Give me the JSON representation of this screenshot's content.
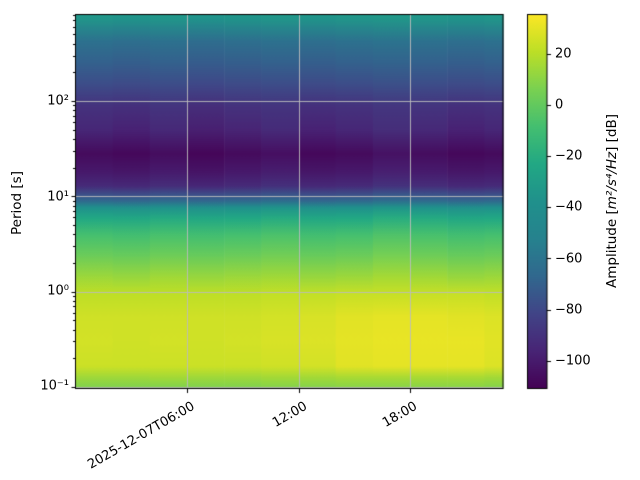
{
  "figure": {
    "background": "#ffffff",
    "grid_color": "#bbbbbb",
    "spine_color": "#000000",
    "y_axis": {
      "label": "Period [s]",
      "scale": "log",
      "range": [
        0.095,
        818
      ],
      "ticks": [
        {
          "value": 100,
          "label": "10²"
        },
        {
          "value": 10,
          "label": "10¹"
        },
        {
          "value": 1,
          "label": "10⁰"
        },
        {
          "value": 0.1,
          "label": "10⁻¹"
        }
      ]
    },
    "x_axis": {
      "date": "2025-12-07",
      "range_hours": [
        0,
        23
      ],
      "ticks": [
        {
          "hour": 6,
          "label": "2025-12-07T06:00"
        },
        {
          "hour": 12,
          "label": "12:00"
        },
        {
          "hour": 18,
          "label": "18:00"
        }
      ]
    },
    "colorbar": {
      "label_prefix": "Amplitude [",
      "label_math": "m²/s⁴/Hz",
      "label_suffix": "] [dB]",
      "vmin": -111,
      "vmax": 35.5,
      "colormap": "viridis",
      "ticks": [
        {
          "value": 20,
          "label": "20"
        },
        {
          "value": 0,
          "label": "0"
        },
        {
          "value": -20,
          "label": "−20"
        },
        {
          "value": -40,
          "label": "−40"
        },
        {
          "value": -60,
          "label": "−60"
        },
        {
          "value": -80,
          "label": "−80"
        },
        {
          "value": -100,
          "label": "−100"
        }
      ]
    }
  },
  "chart_data": {
    "type": "heatmap",
    "title": "",
    "x_unit": "hour of 2025-12-07",
    "y_unit": "period [s], log scale",
    "value_unit": "amplitude [dB]",
    "colormap": "viridis",
    "col_edges_hours": [
      0,
      2,
      4,
      6,
      8,
      10,
      12,
      14,
      16,
      18,
      20,
      22,
      23
    ],
    "rows": [
      {
        "period": 750,
        "db": [
          -34,
          -35,
          -34,
          -36,
          -35,
          -34,
          -35,
          -34,
          -33,
          -34,
          -35,
          -34
        ]
      },
      {
        "period": 420,
        "db": [
          -62,
          -63,
          -62,
          -64,
          -63,
          -62,
          -63,
          -62,
          -61,
          -62,
          -63,
          -62
        ]
      },
      {
        "period": 250,
        "db": [
          -70,
          -71,
          -70,
          -72,
          -71,
          -70,
          -71,
          -70,
          -69,
          -70,
          -71,
          -70
        ]
      },
      {
        "period": 150,
        "db": [
          -78,
          -79,
          -78,
          -80,
          -79,
          -78,
          -79,
          -78,
          -77,
          -78,
          -79,
          -78
        ]
      },
      {
        "period": 88,
        "db": [
          -90,
          -91,
          -89,
          -92,
          -90,
          -89,
          -91,
          -90,
          -88,
          -89,
          -91,
          -90
        ]
      },
      {
        "period": 50,
        "db": [
          -95,
          -97,
          -94,
          -98,
          -96,
          -93,
          -97,
          -95,
          -92,
          -94,
          -97,
          -95
        ]
      },
      {
        "period": 28,
        "db": [
          -107,
          -108,
          -106,
          -109,
          -107,
          -105,
          -108,
          -107,
          -104,
          -106,
          -108,
          -107
        ]
      },
      {
        "period": 18,
        "db": [
          -101,
          -102,
          -100,
          -103,
          -101,
          -99,
          -102,
          -101,
          -98,
          -100,
          -102,
          -101
        ]
      },
      {
        "period": 12.8,
        "db": [
          -93,
          -94,
          -92,
          -95,
          -93,
          -91,
          -94,
          -93,
          -90,
          -92,
          -94,
          -93
        ]
      },
      {
        "period": 10.4,
        "db": [
          -77,
          -78,
          -76,
          -78,
          -77,
          -75,
          -78,
          -77,
          -74,
          -76,
          -78,
          -77
        ]
      },
      {
        "period": 9.0,
        "db": [
          -67,
          -68,
          -66,
          -68,
          -67,
          -65,
          -68,
          -67,
          -64,
          -66,
          -68,
          -67
        ]
      },
      {
        "period": 7.6,
        "db": [
          -38,
          -39,
          -37,
          -39,
          -38,
          -36,
          -39,
          -38,
          -35,
          -37,
          -39,
          -38
        ]
      },
      {
        "period": 5.9,
        "db": [
          -23,
          -24,
          -22,
          -24,
          -23,
          -21,
          -24,
          -23,
          -20,
          -22,
          -24,
          -23
        ]
      },
      {
        "period": 3.9,
        "db": [
          -8,
          -9,
          -7,
          -9,
          -8,
          -6,
          -9,
          -8,
          -5,
          -7,
          -9,
          -8
        ]
      },
      {
        "period": 2.4,
        "db": [
          2,
          1,
          3,
          1,
          2,
          4,
          1,
          2,
          5,
          3,
          1,
          2
        ]
      },
      {
        "period": 1.4,
        "db": [
          14,
          13,
          15,
          13,
          14,
          15,
          13,
          14,
          16,
          15,
          13,
          14
        ]
      },
      {
        "period": 0.95,
        "db": [
          21,
          21,
          21,
          21,
          21,
          22,
          22,
          23,
          23,
          23,
          23,
          22
        ]
      },
      {
        "period": 0.55,
        "db": [
          25,
          25,
          25,
          25,
          25,
          26,
          27,
          29,
          30,
          30,
          29,
          28
        ]
      },
      {
        "period": 0.3,
        "db": [
          26,
          25,
          26,
          25,
          26,
          27,
          28,
          30,
          31,
          31,
          31,
          29
        ]
      },
      {
        "period": 0.165,
        "db": [
          24,
          24,
          24,
          24,
          24,
          25,
          26,
          29,
          30,
          30,
          30,
          28
        ]
      },
      {
        "period": 0.125,
        "db": [
          14,
          14,
          15,
          14,
          14,
          15,
          15,
          16,
          16,
          16,
          16,
          15
        ]
      },
      {
        "period": 0.1,
        "db": [
          8,
          8,
          8,
          8,
          8,
          9,
          9,
          10,
          10,
          10,
          10,
          9
        ]
      }
    ]
  }
}
